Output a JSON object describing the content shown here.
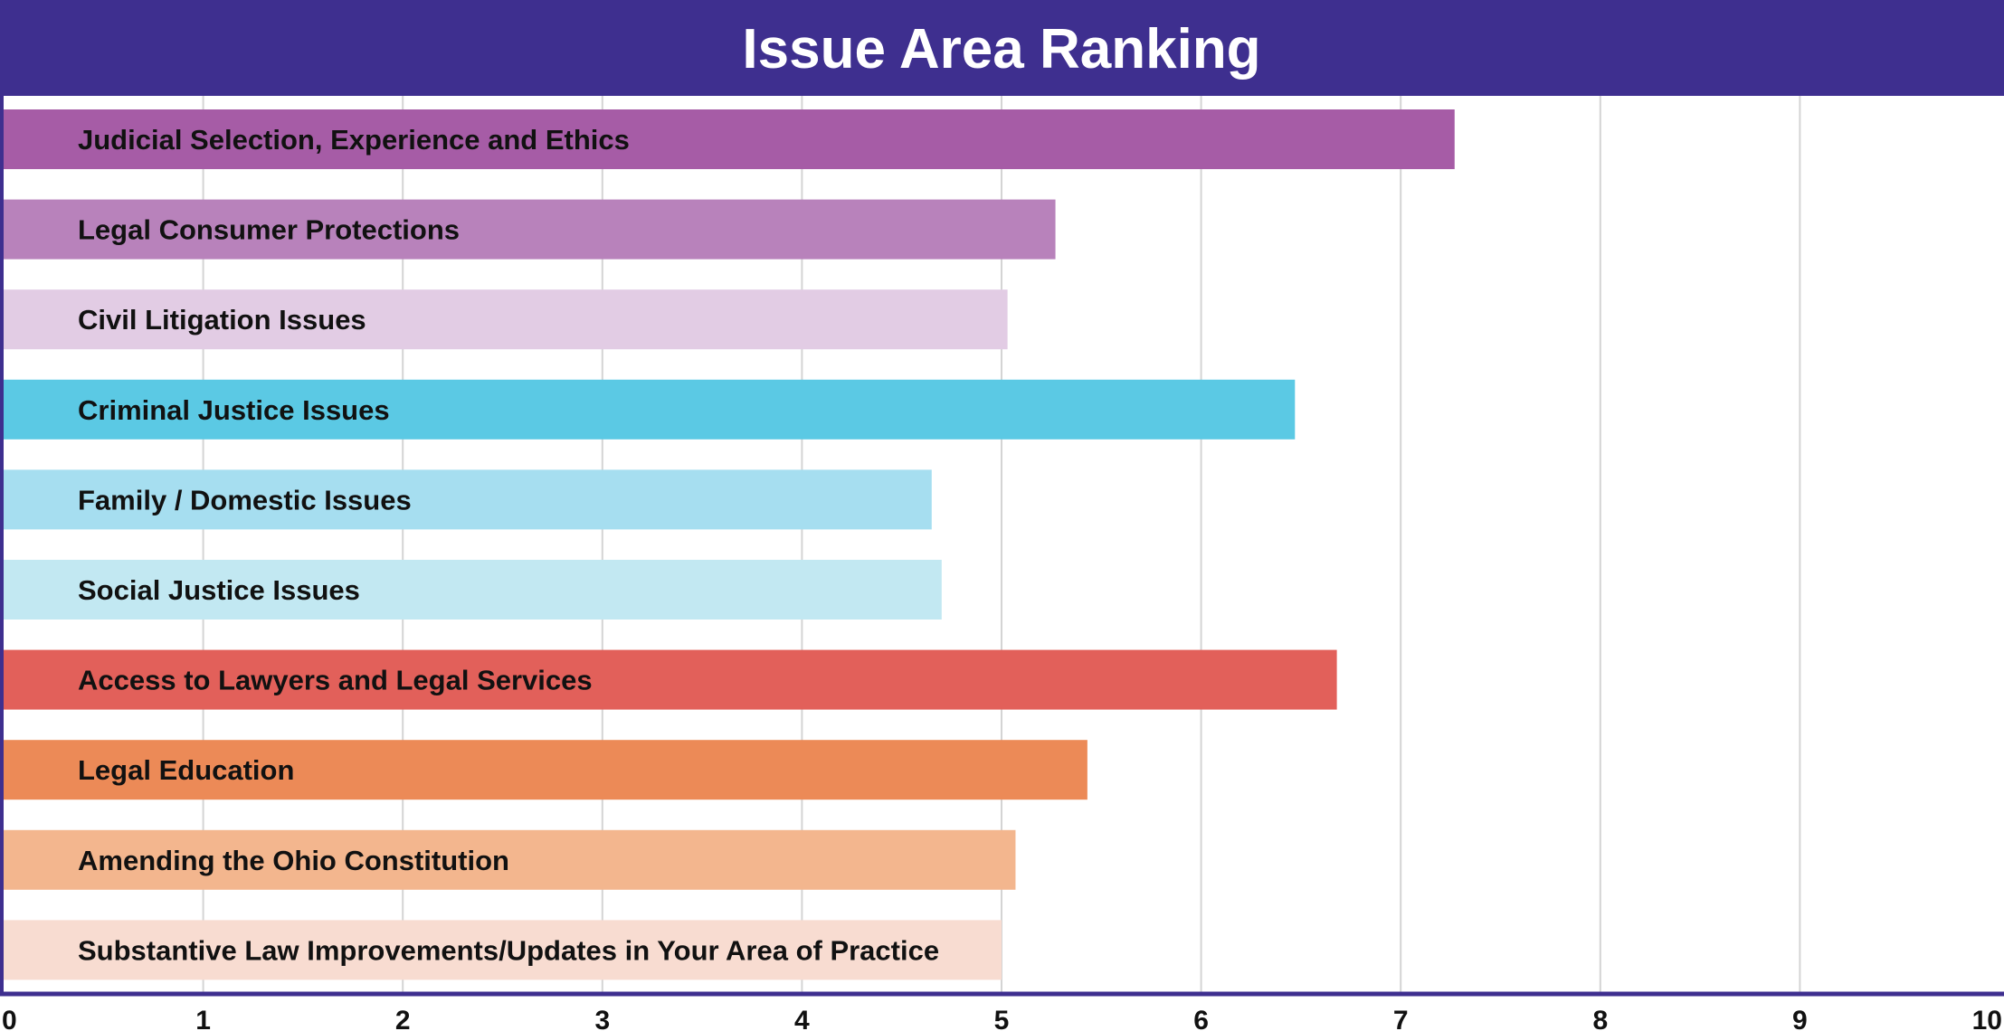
{
  "chart_data": {
    "type": "bar",
    "orientation": "horizontal",
    "title": "Issue Area Ranking",
    "xlabel": "",
    "ylabel": "",
    "xlim": [
      0,
      10
    ],
    "x_ticks": [
      "0",
      "1",
      "2",
      "3",
      "4",
      "5",
      "6",
      "7",
      "8",
      "9",
      "10"
    ],
    "grid": "vertical",
    "legend": "none",
    "categories": [
      "Judicial Selection, Experience and Ethics",
      "Legal Consumer Protections",
      "Civil Litigation Issues",
      "Criminal Justice Issues",
      "Family / Domestic Issues",
      "Social Justice Issues",
      "Access to Lawyers and Legal Services",
      "Legal Education",
      "Amending the Ohio Constitution",
      "Substantive Law Improvements/Updates in Your Area of Practice"
    ],
    "values": [
      7.27,
      5.27,
      5.03,
      6.47,
      4.65,
      4.7,
      6.68,
      5.43,
      5.07,
      5.0
    ],
    "colors": [
      "#a65ca6",
      "#b882bb",
      "#e2cce4",
      "#5bc9e4",
      "#a6def0",
      "#c2e8f2",
      "#e2605a",
      "#ec8a57",
      "#f3b68e",
      "#f8dcd1"
    ],
    "frame_color": "#3e2f8f",
    "grid_color": "#d4d4d4"
  }
}
